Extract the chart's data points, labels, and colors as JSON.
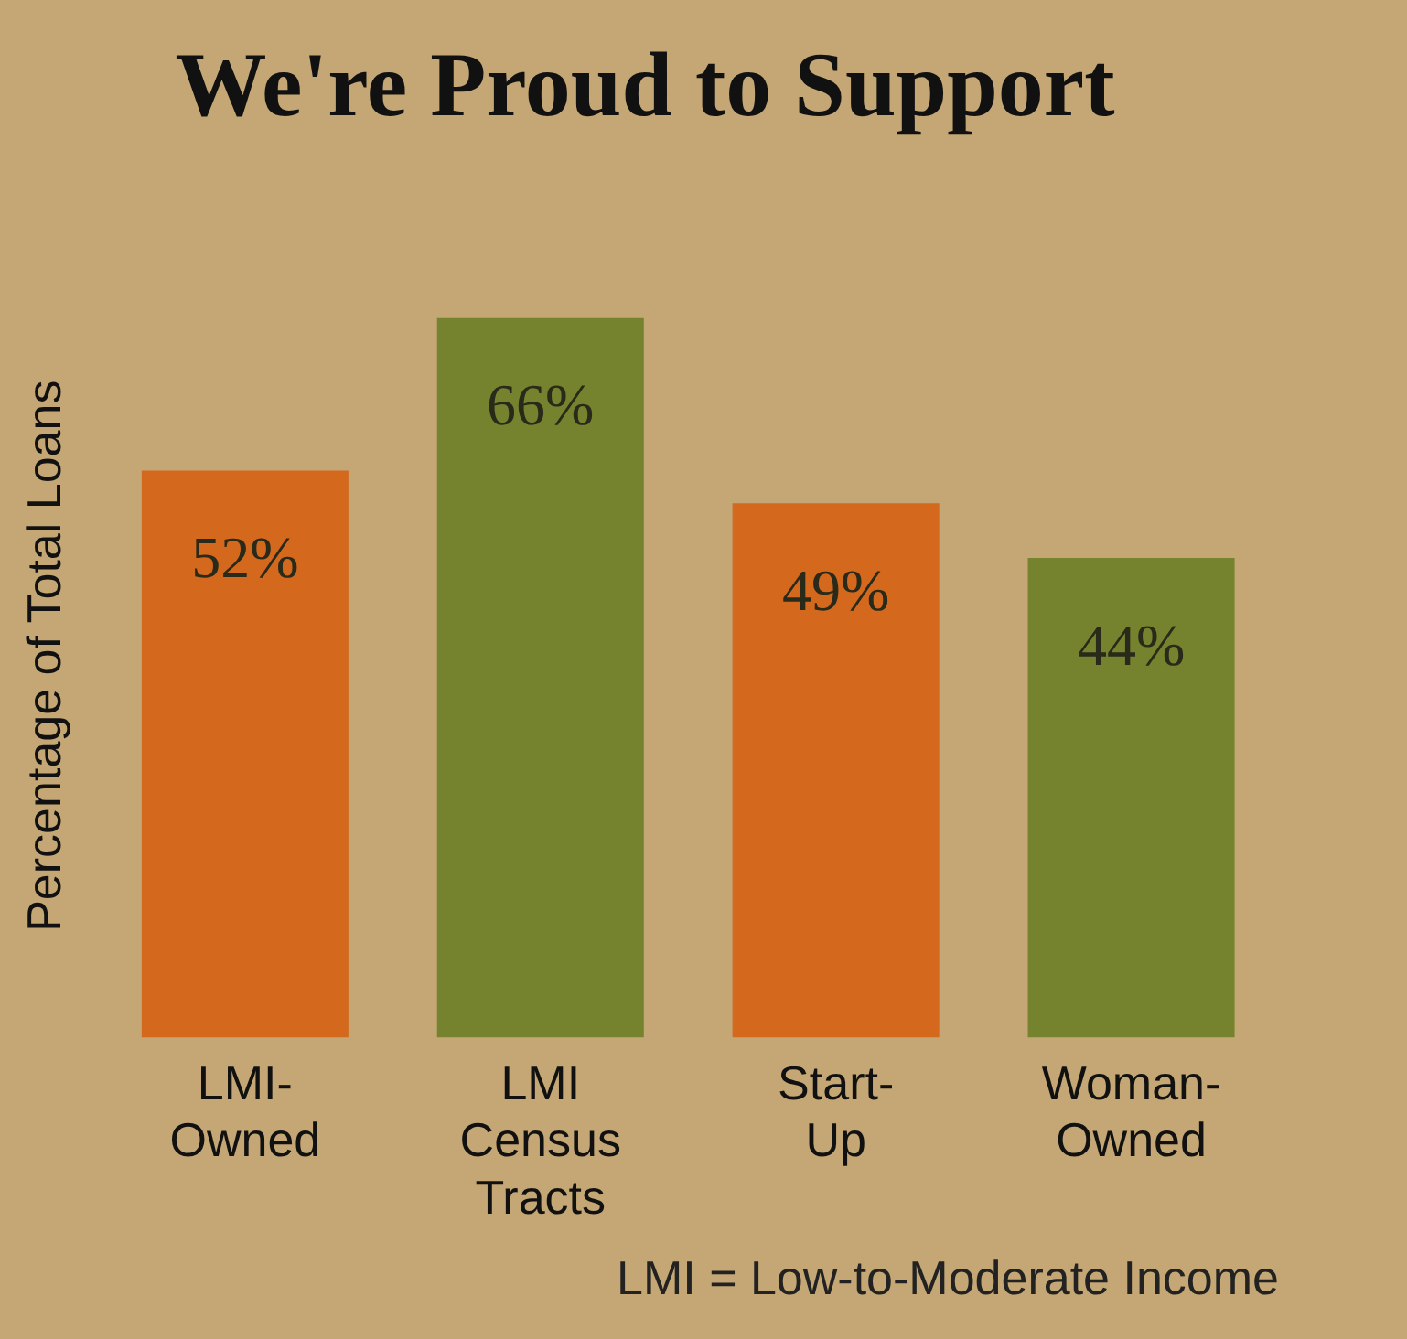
{
  "chart_data": {
    "type": "bar",
    "title": "We're Proud to Support",
    "ylabel": "Percentage of Total Loans",
    "categories": [
      "LMI-Owned",
      "LMI Census Tracts",
      "Start-Up",
      "Woman-Owned"
    ],
    "values": [
      52,
      66,
      49,
      44
    ],
    "colors": [
      "#d4691e",
      "#76832e",
      "#d4691e",
      "#76832e"
    ],
    "value_labels": [
      "52%",
      "66%",
      "49%",
      "44%"
    ],
    "annotations": [
      "LMI = Low-to-Moderate Income"
    ],
    "grid": false,
    "legend": false
  }
}
